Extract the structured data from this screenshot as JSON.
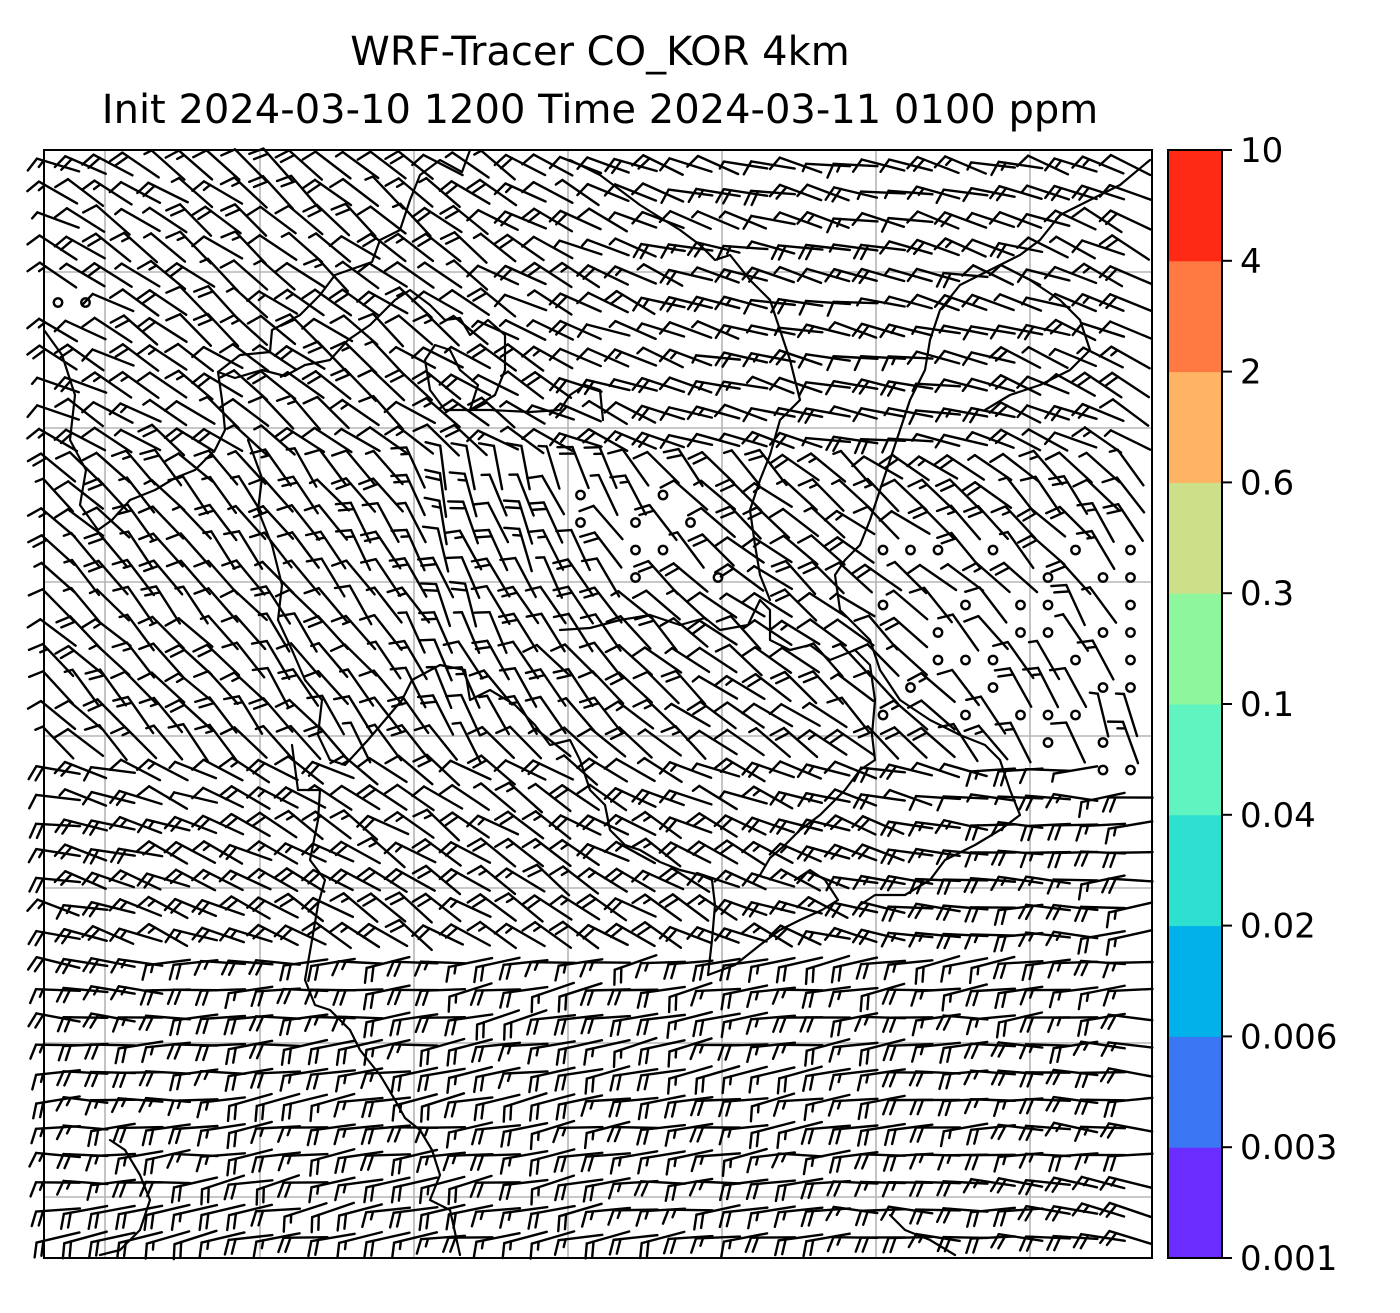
{
  "title": {
    "line1": "WRF-Tracer CO_KOR 4km",
    "line2": "Init 2024-03-10 1200 Time 2024-03-11 0100 ppm"
  },
  "colorbar": {
    "levels": [
      "0.001",
      "0.003",
      "0.006",
      "0.02",
      "0.04",
      "0.1",
      "0.3",
      "0.6",
      "2",
      "4",
      "10"
    ],
    "colors": [
      "#6a2cff",
      "#3a76f4",
      "#00b1ea",
      "#2ee0d0",
      "#5ff4c0",
      "#8ef79e",
      "#cce08a",
      "#ffb464",
      "#ff7a42",
      "#ff2a16"
    ]
  },
  "map": {
    "features": [
      "coastline",
      "gridlines",
      "wind-barbs",
      "calm-circles"
    ],
    "tracer_field": "no shading above 0.001 ppm visible"
  }
}
